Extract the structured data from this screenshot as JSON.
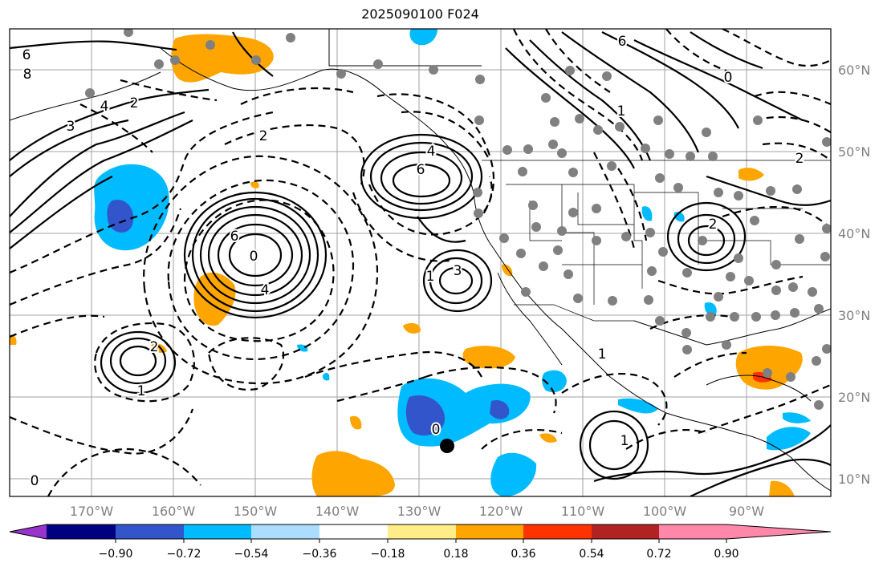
{
  "title": "2025090100 F024",
  "lat_labels": [
    "60°N",
    "50°N",
    "40°N",
    "30°N",
    "20°N",
    "10°N"
  ],
  "lon_labels": [
    "170°W",
    "160°W",
    "150°W",
    "140°W",
    "130°W",
    "120°W",
    "110°W",
    "100°W",
    "90°W"
  ],
  "colorbar": {
    "ticks": [
      "−0.90",
      "−0.72",
      "−0.54",
      "−0.36",
      "−0.18",
      "0.18",
      "0.36",
      "0.54",
      "0.72",
      "0.90"
    ],
    "colors": [
      "#9933cc",
      "#000080",
      "#3355cc",
      "#00bbff",
      "#aaddff",
      "#ffffff",
      "#ffee88",
      "#ffa500",
      "#ff3300",
      "#b22222",
      "#ff88aa"
    ]
  },
  "contour_labels": [
    {
      "text": "6",
      "pos": "nw coast"
    },
    {
      "text": "8",
      "pos": "nw coast"
    },
    {
      "text": "4",
      "pos": "n pacific"
    },
    {
      "text": "2",
      "pos": "n pacific"
    },
    {
      "text": "3",
      "pos": "n pacific"
    },
    {
      "text": "0",
      "pos": "central low"
    },
    {
      "text": "6",
      "pos": "central low"
    },
    {
      "text": "4",
      "pos": "central low"
    },
    {
      "text": "6",
      "pos": "ne pacific high"
    },
    {
      "text": "4",
      "pos": "ne pacific high"
    },
    {
      "text": "3",
      "pos": "california low"
    },
    {
      "text": "1",
      "pos": "california low"
    },
    {
      "text": "2",
      "pos": "subtropical low"
    },
    {
      "text": "1",
      "pos": "subtropical low"
    },
    {
      "text": "2",
      "pos": "great plains"
    },
    {
      "text": "1",
      "pos": "mexico"
    },
    {
      "text": "2",
      "pos": "east canada"
    },
    {
      "text": "6",
      "pos": "north"
    },
    {
      "text": "1",
      "pos": "north"
    },
    {
      "text": "0",
      "pos": "north"
    },
    {
      "text": "2",
      "pos": "dateline"
    },
    {
      "text": "0",
      "pos": "tropics"
    },
    {
      "text": "1",
      "pos": "tropics"
    },
    {
      "text": "0",
      "pos": "tropics"
    }
  ]
}
